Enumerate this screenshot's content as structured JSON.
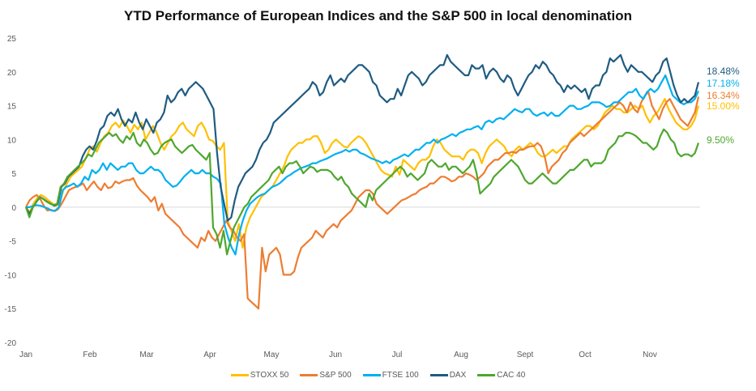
{
  "chart_data": {
    "type": "line",
    "title": "YTD Performance of European Indices and the S&P 500 in local denomination",
    "xlabel": "",
    "ylabel": "",
    "ylim": [
      -20,
      25
    ],
    "yticks": [
      25,
      20,
      15,
      10,
      5,
      0,
      -5,
      -10,
      -15,
      -20
    ],
    "categories": [
      "Jan",
      "Feb",
      "Mar",
      "Apr",
      "May",
      "Jun",
      "Jul",
      "Aug",
      "Sept",
      "Oct",
      "Nov"
    ],
    "x_range_months": [
      0,
      10.75
    ],
    "grid": false,
    "zero_line": true,
    "legend_position": "bottom",
    "series": [
      {
        "name": "STOXX 50",
        "color": "#FFC000",
        "end_label": "15.00%",
        "values": [
          0,
          -0.8,
          0.5,
          1.3,
          1.8,
          1.5,
          1.0,
          0.6,
          0.2,
          0.4,
          2.5,
          3.5,
          4.5,
          5.0,
          5.5,
          6.0,
          7.2,
          8.5,
          9.0,
          8.2,
          9.5,
          10.5,
          11.0,
          12.0,
          12.5,
          11.8,
          12.8,
          12.0,
          11.0,
          12.2,
          11.5,
          12.5,
          10.0,
          11.0,
          12.0,
          11.0,
          9.5,
          8.5,
          9.5,
          10.5,
          11.0,
          12.0,
          12.5,
          11.5,
          11.0,
          10.5,
          12.0,
          12.5,
          11.5,
          10.0,
          9.8,
          9.0,
          8.5,
          9.5,
          -2.0,
          -3.5,
          -5.0,
          -2.5,
          -6.0,
          -3.0,
          -1.5,
          -0.5,
          0.5,
          1.5,
          2.0,
          2.5,
          3.0,
          4.0,
          5.0,
          6.0,
          7.5,
          8.5,
          9.0,
          9.5,
          9.5,
          10.0,
          10.0,
          10.5,
          10.5,
          9.5,
          8.0,
          8.5,
          9.5,
          10.0,
          9.5,
          9.0,
          8.8,
          9.5,
          10.0,
          10.5,
          10.2,
          9.5,
          8.5,
          7.5,
          6.5,
          5.5,
          5.0,
          4.8,
          4.5,
          6.0,
          4.8,
          7.0,
          6.5,
          6.0,
          5.5,
          6.5,
          7.0,
          7.0,
          7.5,
          9.0,
          10.0,
          9.5,
          8.5,
          8.0,
          7.5,
          7.5,
          7.5,
          7.0,
          8.0,
          8.5,
          8.5,
          8.0,
          6.5,
          8.0,
          9.0,
          9.5,
          10.0,
          9.5,
          9.0,
          8.0,
          7.5,
          8.5,
          9.0,
          8.5,
          9.0,
          9.5,
          9.0,
          8.0,
          7.5,
          7.5,
          8.0,
          8.5,
          8.0,
          8.5,
          9.0,
          9.0,
          10.0,
          10.5,
          11.0,
          11.5,
          12.0,
          12.0,
          11.5,
          12.0,
          13.0,
          14.0,
          14.5,
          15.0,
          14.5,
          14.5,
          14.0,
          14.0,
          14.5,
          15.0,
          14.5,
          15.0,
          13.5,
          12.5,
          13.5,
          14.0,
          15.0,
          16.0,
          14.5,
          13.5,
          12.5,
          12.0,
          11.5,
          11.5,
          12.0,
          13.0,
          15.0
        ]
      },
      {
        "name": "S&P 500",
        "color": "#ED7D31",
        "end_label": "16.34%",
        "values": [
          0,
          1.0,
          1.5,
          1.8,
          1.2,
          0.2,
          -0.5,
          -0.4,
          -0.6,
          -0.3,
          0.5,
          1.5,
          2.5,
          2.8,
          3.0,
          3.2,
          3.5,
          2.5,
          3.2,
          3.8,
          3.0,
          2.5,
          3.5,
          2.8,
          3.0,
          3.8,
          3.5,
          3.8,
          4.0,
          4.0,
          4.3,
          3.2,
          2.5,
          2.0,
          1.5,
          0.8,
          1.5,
          -0.5,
          0.5,
          -1.0,
          -1.5,
          -2.0,
          -2.5,
          -3.0,
          -4.0,
          -4.5,
          -5.0,
          -5.5,
          -6.0,
          -4.5,
          -5.0,
          -3.5,
          -4.5,
          -5.0,
          -4.0,
          -3.0,
          -2.0,
          -3.0,
          -3.5,
          -4.5,
          -5.0,
          -4.0,
          -13.5,
          -14.0,
          -14.5,
          -15.0,
          -6.0,
          -9.5,
          -7.0,
          -6.5,
          -6.0,
          -7.0,
          -10.0,
          -10.0,
          -10.0,
          -9.5,
          -7.5,
          -6.0,
          -5.5,
          -5.0,
          -4.5,
          -3.5,
          -4.0,
          -4.5,
          -3.5,
          -3.0,
          -2.5,
          -3.0,
          -2.0,
          -1.5,
          -1.0,
          -0.5,
          0.5,
          1.5,
          2.0,
          2.5,
          2.5,
          2.0,
          0.5,
          0,
          -0.5,
          -1.0,
          -0.5,
          0,
          0.5,
          1.0,
          1.2,
          1.5,
          1.8,
          2.0,
          2.5,
          2.8,
          3.0,
          3.5,
          3.5,
          4.0,
          4.5,
          4.5,
          4.2,
          3.8,
          4.0,
          4.5,
          4.5,
          5.0,
          4.8,
          4.5,
          4.0,
          4.5,
          5.0,
          6.0,
          6.5,
          7.0,
          7.0,
          7.5,
          8.0,
          8.0,
          8.2,
          8.0,
          8.5,
          8.5,
          8.8,
          9.0,
          9.0,
          9.5,
          9.0,
          7.5,
          5.0,
          6.0,
          6.5,
          7.0,
          8.0,
          8.5,
          9.5,
          10.0,
          10.5,
          11.0,
          10.5,
          11.0,
          11.5,
          12.0,
          12.5,
          13.0,
          13.5,
          14.0,
          14.5,
          15.0,
          15.5,
          15.0,
          14.0,
          15.5,
          14.5,
          14.0,
          15.5,
          16.5,
          17.0,
          15.0,
          14.0,
          13.0,
          14.5,
          15.5,
          16.0,
          15.0,
          14.0,
          13.0,
          12.5,
          12.0,
          13.0,
          14.0,
          16.34
        ]
      },
      {
        "name": "FTSE 100",
        "color": "#00B0F0",
        "end_label": "17.18%",
        "values": [
          0,
          0,
          0.2,
          0.3,
          0.2,
          0,
          -0.2,
          -0.5,
          -0.5,
          0,
          2.5,
          3.0,
          3.2,
          3.5,
          3.0,
          3.5,
          4.5,
          4.0,
          5.5,
          5.0,
          5.5,
          6.5,
          5.5,
          6.5,
          6.0,
          5.5,
          6.0,
          6.0,
          6.5,
          6.5,
          5.5,
          5.0,
          5.0,
          5.5,
          6.0,
          5.5,
          5.5,
          5.0,
          4.0,
          3.5,
          3.0,
          3.2,
          3.8,
          4.5,
          5.0,
          5.5,
          5.0,
          5.0,
          5.5,
          5.0,
          5.0,
          4.5,
          4.2,
          3.5,
          -2.5,
          -4.5,
          -6.0,
          -7.0,
          -4.0,
          -2.0,
          -0.5,
          0.5,
          1.0,
          1.5,
          1.8,
          2.0,
          2.5,
          3.0,
          3.2,
          3.5,
          4.0,
          4.5,
          4.8,
          5.2,
          5.5,
          5.8,
          6.0,
          6.2,
          6.5,
          6.5,
          6.8,
          7.0,
          7.2,
          7.5,
          7.8,
          8.0,
          8.2,
          8.5,
          8.2,
          8.5,
          8.5,
          8.0,
          7.8,
          7.5,
          7.2,
          7.0,
          6.8,
          6.5,
          6.8,
          6.5,
          7.0,
          7.2,
          7.5,
          7.8,
          7.5,
          8.0,
          8.5,
          8.5,
          9.0,
          9.5,
          9.5,
          10.0,
          9.5,
          10.0,
          10.2,
          10.5,
          10.8,
          10.5,
          11.0,
          11.2,
          11.5,
          11.5,
          11.8,
          12.0,
          11.5,
          12.5,
          12.8,
          12.5,
          13.0,
          13.2,
          13.0,
          13.5,
          14.0,
          14.5,
          14.2,
          14.0,
          14.5,
          14.5,
          13.8,
          13.5,
          13.8,
          14.0,
          13.5,
          14.0,
          13.5,
          13.5,
          14.0,
          14.5,
          15.0,
          15.0,
          14.5,
          14.5,
          14.8,
          15.0,
          15.5,
          15.5,
          15.5,
          15.2,
          14.8,
          15.0,
          15.5,
          15.5,
          16.0,
          16.5,
          17.0,
          17.0,
          17.5,
          16.5,
          16.0,
          17.0,
          17.5,
          17.0,
          17.5,
          18.5,
          19.5,
          18.0,
          16.5,
          16.0,
          15.5,
          15.2,
          15.5,
          15.5,
          16.0,
          17.18
        ]
      },
      {
        "name": "DAX",
        "color": "#1F5C82",
        "end_label": "18.48%",
        "values": [
          0,
          -1.0,
          0,
          0.8,
          1.5,
          1.2,
          0.8,
          0.5,
          0.2,
          0.5,
          3.0,
          3.5,
          4.5,
          5.0,
          5.5,
          6.0,
          7.5,
          8.5,
          9.0,
          8.5,
          9.8,
          11.5,
          12.0,
          13.5,
          14.0,
          13.5,
          14.5,
          13.0,
          12.0,
          13.0,
          12.5,
          14.0,
          12.5,
          11.5,
          13.0,
          12.0,
          11.0,
          12.5,
          13.0,
          14.0,
          16.5,
          15.5,
          16.0,
          17.0,
          17.5,
          16.5,
          17.5,
          18.0,
          18.5,
          18.0,
          17.5,
          16.5,
          15.5,
          14.5,
          8.0,
          3.0,
          0.5,
          -2.0,
          -1.5,
          1.0,
          3.0,
          4.0,
          5.0,
          5.5,
          6.0,
          7.0,
          8.5,
          9.5,
          10.0,
          11.0,
          12.5,
          13.0,
          13.5,
          14.0,
          14.5,
          15.0,
          15.5,
          16.0,
          16.5,
          17.0,
          17.5,
          18.5,
          18.0,
          16.5,
          17.0,
          18.5,
          19.5,
          18.0,
          18.5,
          19.0,
          18.5,
          19.5,
          20.0,
          20.5,
          21.0,
          21.0,
          20.5,
          20.0,
          18.5,
          18.0,
          16.5,
          16.0,
          15.5,
          16.0,
          16.0,
          17.5,
          16.5,
          18.0,
          19.5,
          20.0,
          19.5,
          19.0,
          18.0,
          18.5,
          19.5,
          20.0,
          20.5,
          21.0,
          21.0,
          22.5,
          21.5,
          21.0,
          20.5,
          20.0,
          19.5,
          19.5,
          21.0,
          20.5,
          20.5,
          21.0,
          19.0,
          20.0,
          20.5,
          20.0,
          19.0,
          18.5,
          19.5,
          19.0,
          17.5,
          16.5,
          17.5,
          18.5,
          19.5,
          20.0,
          21.0,
          20.5,
          21.5,
          21.0,
          20.0,
          19.5,
          18.5,
          18.0,
          17.0,
          18.0,
          17.5,
          18.0,
          17.5,
          17.0,
          17.5,
          16.0,
          17.5,
          18.0,
          18.0,
          19.5,
          20.0,
          22.0,
          21.5,
          22.0,
          22.5,
          21.0,
          20.0,
          21.0,
          20.5,
          20.0,
          20.0,
          19.5,
          19.0,
          18.5,
          19.5,
          20.0,
          21.5,
          22.0,
          20.0,
          18.0,
          16.5,
          15.5,
          16.0,
          15.5,
          16.0,
          16.5,
          18.48
        ]
      },
      {
        "name": "CAC 40",
        "color": "#4EA72E",
        "end_label": "9.50%",
        "values": [
          0,
          -1.5,
          0,
          0.8,
          1.5,
          1.2,
          0.8,
          0.5,
          0.3,
          0.5,
          3.0,
          3.5,
          4.5,
          5.0,
          5.5,
          6.0,
          6.5,
          7.0,
          7.8,
          7.5,
          8.5,
          9.5,
          10.0,
          10.5,
          11.0,
          10.5,
          10.8,
          10.0,
          9.5,
          10.5,
          10.0,
          11.0,
          9.5,
          9.0,
          10.0,
          9.5,
          8.5,
          7.8,
          8.0,
          9.0,
          9.5,
          9.8,
          10.0,
          9.0,
          8.5,
          8.0,
          8.5,
          9.0,
          9.2,
          8.5,
          8.0,
          7.5,
          7.0,
          8.0,
          -3.0,
          -4.0,
          -6.0,
          -3.5,
          -7.0,
          -5.0,
          -3.0,
          -2.0,
          -1.0,
          0,
          0.5,
          1.5,
          2.0,
          2.5,
          3.0,
          3.5,
          4.0,
          5.0,
          5.5,
          6.0,
          5.0,
          6.0,
          6.5,
          6.5,
          6.8,
          6.0,
          5.0,
          5.5,
          6.0,
          5.8,
          5.2,
          5.5,
          5.5,
          5.5,
          5.2,
          4.5,
          4.0,
          4.5,
          3.5,
          3.0,
          2.0,
          1.5,
          1.0,
          0.5,
          0.0,
          2.0,
          1.0,
          2.5,
          3.0,
          3.5,
          4.0,
          4.5,
          5.0,
          5.5,
          6.0,
          5.5,
          4.5,
          5.0,
          4.5,
          4.0,
          4.5,
          5.0,
          6.5,
          7.0,
          6.5,
          6.0,
          6.0,
          6.5,
          5.5,
          6.0,
          6.0,
          5.5,
          5.0,
          5.5,
          6.0,
          7.0,
          5.0,
          2.0,
          2.5,
          3.0,
          3.5,
          4.5,
          5.0,
          5.5,
          6.0,
          6.5,
          7.0,
          6.5,
          6.0,
          5.0,
          4.0,
          3.5,
          3.5,
          4.0,
          4.5,
          5.0,
          4.5,
          4.0,
          3.5,
          3.5,
          4.0,
          4.5,
          5.0,
          5.5,
          5.5,
          6.0,
          6.5,
          7.0,
          7.0,
          6.0,
          6.5,
          6.5,
          6.5,
          7.0,
          8.5,
          9.0,
          9.5,
          10.5,
          10.5,
          11.0,
          11.0,
          10.8,
          10.5,
          10.0,
          9.5,
          9.5,
          9.0,
          8.5,
          9.0,
          10.5,
          11.5,
          11.0,
          10.0,
          9.5,
          8.0,
          7.5,
          7.8,
          7.8,
          7.5,
          8.0,
          9.5
        ]
      }
    ]
  }
}
